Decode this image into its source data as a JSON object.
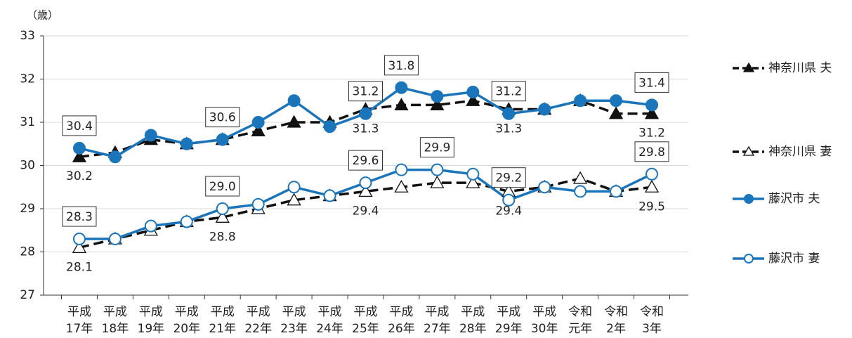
{
  "chart_data": {
    "type": "line",
    "y_label": "（歳）",
    "categories": [
      [
        "平成",
        "17年"
      ],
      [
        "平成",
        "18年"
      ],
      [
        "平成",
        "19年"
      ],
      [
        "平成",
        "20年"
      ],
      [
        "平成",
        "21年"
      ],
      [
        "平成",
        "22年"
      ],
      [
        "平成",
        "23年"
      ],
      [
        "平成",
        "24年"
      ],
      [
        "平成",
        "25年"
      ],
      [
        "平成",
        "26年"
      ],
      [
        "平成",
        "27年"
      ],
      [
        "平成",
        "28年"
      ],
      [
        "平成",
        "29年"
      ],
      [
        "平成",
        "30年"
      ],
      [
        "令和",
        "元年"
      ],
      [
        "令和",
        "2年"
      ],
      [
        "令和",
        "3年"
      ]
    ],
    "ylim": [
      27,
      33
    ],
    "yticks": [
      27,
      28,
      29,
      30,
      31,
      32,
      33
    ],
    "grid": true,
    "series": [
      {
        "name": "神奈川県 夫",
        "color": "#111111",
        "dash": true,
        "marker": "triangle",
        "filled": true,
        "label_pos": "below",
        "boxed": false,
        "values": [
          30.2,
          30.3,
          30.6,
          30.5,
          30.6,
          30.8,
          31.0,
          31.0,
          31.3,
          31.4,
          31.4,
          31.5,
          31.3,
          31.3,
          31.5,
          31.2,
          31.2
        ],
        "value_labels": [
          "30.2",
          null,
          null,
          null,
          null,
          null,
          null,
          null,
          "31.3",
          null,
          null,
          null,
          "31.3",
          null,
          null,
          null,
          "31.2"
        ]
      },
      {
        "name": "神奈川県 妻",
        "color": "#111111",
        "dash": true,
        "marker": "triangle",
        "filled": false,
        "label_pos": "below",
        "boxed": false,
        "values": [
          28.1,
          28.3,
          28.5,
          28.7,
          28.8,
          29.0,
          29.2,
          29.3,
          29.4,
          29.5,
          29.6,
          29.6,
          29.4,
          29.5,
          29.7,
          29.4,
          29.5
        ],
        "value_labels": [
          "28.1",
          null,
          null,
          null,
          "28.8",
          null,
          null,
          null,
          "29.4",
          null,
          null,
          null,
          "29.4",
          null,
          null,
          null,
          "29.5"
        ]
      },
      {
        "name": "藤沢市 夫",
        "color": "#1b75bb",
        "dash": false,
        "marker": "circle",
        "filled": true,
        "label_pos": "above",
        "boxed": true,
        "values": [
          30.4,
          30.2,
          30.7,
          30.5,
          30.6,
          31.0,
          31.5,
          30.9,
          31.2,
          31.8,
          31.6,
          31.7,
          31.2,
          31.3,
          31.5,
          31.5,
          31.4
        ],
        "value_labels": [
          "30.4",
          null,
          null,
          null,
          "30.6",
          null,
          null,
          null,
          "31.2",
          "31.8",
          null,
          null,
          "31.2",
          null,
          null,
          null,
          "31.4"
        ]
      },
      {
        "name": "藤沢市 妻",
        "color": "#1b75bb",
        "dash": false,
        "marker": "circle",
        "filled": false,
        "label_pos": "above",
        "boxed": true,
        "values": [
          28.3,
          28.3,
          28.6,
          28.7,
          29.0,
          29.1,
          29.5,
          29.3,
          29.6,
          29.9,
          29.9,
          29.8,
          29.2,
          29.5,
          29.4,
          29.4,
          29.8
        ],
        "value_labels": [
          "28.3",
          null,
          null,
          null,
          "29.0",
          null,
          null,
          null,
          "29.6",
          null,
          "29.9",
          null,
          "29.2",
          null,
          null,
          null,
          "29.8"
        ]
      }
    ]
  }
}
